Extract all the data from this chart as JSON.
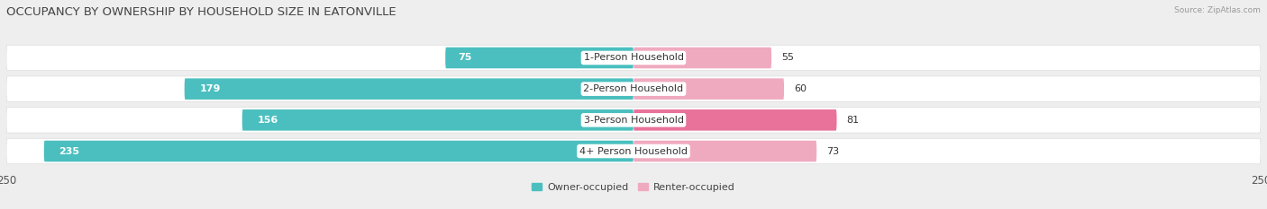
{
  "title": "OCCUPANCY BY OWNERSHIP BY HOUSEHOLD SIZE IN EATONVILLE",
  "source": "Source: ZipAtlas.com",
  "categories": [
    "1-Person Household",
    "2-Person Household",
    "3-Person Household",
    "4+ Person Household"
  ],
  "owner_values": [
    75,
    179,
    156,
    235
  ],
  "renter_values": [
    55,
    60,
    81,
    73
  ],
  "max_scale": 250,
  "owner_color": "#4BBFBF",
  "renter_color_light": "#F0AABF",
  "renter_color_dark": "#E8729A",
  "bg_color": "#eeeeee",
  "row_bg": "#f8f8f8",
  "row_separator": "#dddddd",
  "legend_owner": "Owner-occupied",
  "legend_renter": "Renter-occupied",
  "title_fontsize": 9.5,
  "label_fontsize": 8,
  "value_fontsize": 8,
  "tick_fontsize": 8.5
}
